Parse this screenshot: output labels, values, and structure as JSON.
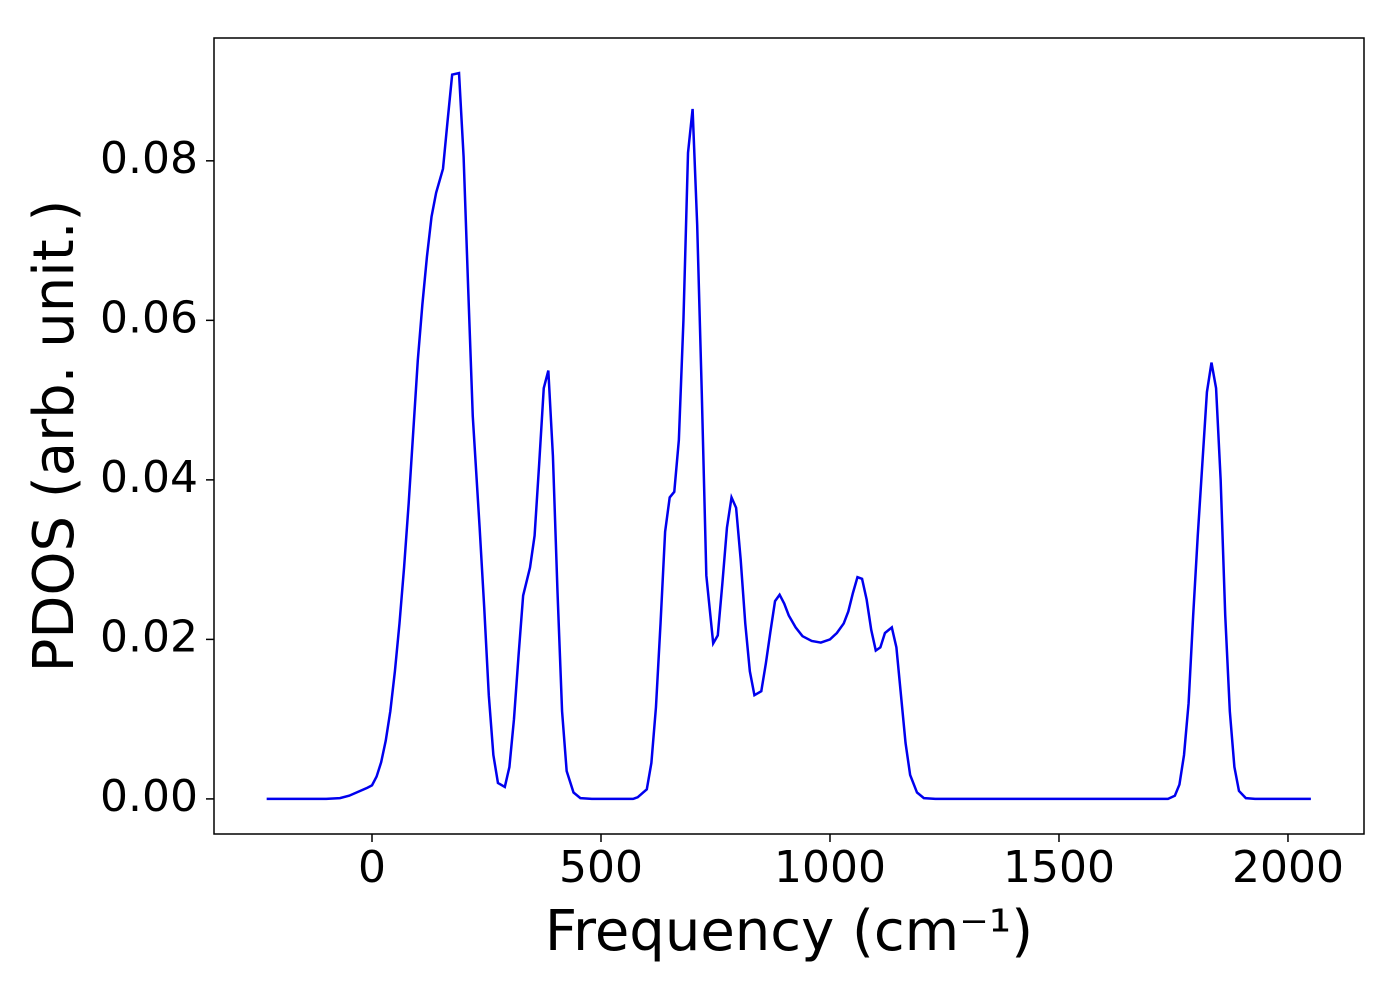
{
  "chart_data": {
    "type": "line",
    "xlabel": "Frequency (cm⁻¹)",
    "ylabel": "PDOS (arb. unit.)",
    "xlim": [
      -345,
      2166
    ],
    "ylim": [
      -0.0044,
      0.0954
    ],
    "xticks": [
      0,
      500,
      1000,
      1500,
      2000
    ],
    "yticks": [
      {
        "value": 0,
        "label": "0.00"
      },
      {
        "value": 0.02,
        "label": "0.02"
      },
      {
        "value": 0.04,
        "label": "0.04"
      },
      {
        "value": 0.06,
        "label": "0.06"
      },
      {
        "value": 0.08,
        "label": "0.08"
      }
    ],
    "grid": false,
    "series": [
      {
        "name": "PDOS",
        "color": "#0000ee",
        "x": [
          -230,
          -100,
          -70,
          -50,
          -30,
          -10,
          0,
          10,
          20,
          30,
          40,
          50,
          60,
          70,
          80,
          90,
          100,
          110,
          120,
          130,
          140,
          155,
          165,
          175,
          190,
          200,
          210,
          220,
          235,
          245,
          255,
          265,
          275,
          290,
          300,
          310,
          320,
          330,
          345,
          355,
          365,
          375,
          385,
          395,
          405,
          415,
          425,
          440,
          455,
          480,
          570,
          580,
          600,
          610,
          620,
          630,
          640,
          650,
          660,
          670,
          680,
          690,
          700,
          710,
          720,
          730,
          745,
          755,
          765,
          775,
          785,
          795,
          805,
          815,
          825,
          835,
          850,
          860,
          870,
          880,
          890,
          900,
          910,
          925,
          940,
          960,
          980,
          1000,
          1015,
          1030,
          1040,
          1050,
          1060,
          1070,
          1080,
          1090,
          1100,
          1110,
          1120,
          1135,
          1145,
          1155,
          1165,
          1175,
          1190,
          1205,
          1230,
          1738,
          1753,
          1763,
          1773,
          1783,
          1793,
          1803,
          1813,
          1823,
          1833,
          1843,
          1853,
          1863,
          1873,
          1883,
          1893,
          1908,
          1928,
          2050
        ],
        "values": [
          0,
          0,
          0.0001,
          0.0004,
          0.0009,
          0.0014,
          0.0017,
          0.0028,
          0.0046,
          0.0073,
          0.011,
          0.016,
          0.022,
          0.029,
          0.037,
          0.046,
          0.055,
          0.062,
          0.068,
          0.073,
          0.076,
          0.079,
          0.085,
          0.0908,
          0.091,
          0.0805,
          0.064,
          0.048,
          0.034,
          0.024,
          0.013,
          0.0055,
          0.002,
          0.0015,
          0.004,
          0.01,
          0.018,
          0.0255,
          0.029,
          0.033,
          0.042,
          0.0515,
          0.0537,
          0.043,
          0.026,
          0.011,
          0.0035,
          0.0008,
          0.0001,
          0,
          0,
          0.0002,
          0.0012,
          0.0045,
          0.0115,
          0.022,
          0.0335,
          0.0378,
          0.0385,
          0.045,
          0.06,
          0.081,
          0.0865,
          0.072,
          0.051,
          0.028,
          0.0195,
          0.0205,
          0.027,
          0.034,
          0.0378,
          0.0365,
          0.03,
          0.022,
          0.016,
          0.013,
          0.0135,
          0.017,
          0.021,
          0.0248,
          0.0256,
          0.0245,
          0.023,
          0.0215,
          0.0204,
          0.0198,
          0.0196,
          0.02,
          0.0208,
          0.022,
          0.0235,
          0.0258,
          0.0278,
          0.0276,
          0.025,
          0.0212,
          0.0186,
          0.019,
          0.0208,
          0.0215,
          0.019,
          0.013,
          0.007,
          0.003,
          0.0008,
          0.0001,
          0,
          0,
          0.0004,
          0.0018,
          0.0055,
          0.012,
          0.023,
          0.033,
          0.042,
          0.051,
          0.0547,
          0.0515,
          0.04,
          0.023,
          0.011,
          0.004,
          0.001,
          0.0001,
          0,
          0
        ]
      }
    ]
  }
}
